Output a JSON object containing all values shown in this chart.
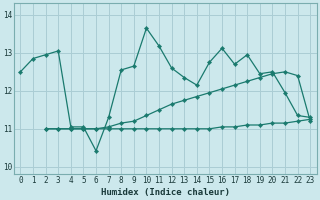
{
  "xlabel": "Humidex (Indice chaleur)",
  "background_color": "#cce8ec",
  "grid_color": "#aacdd4",
  "line_color": "#1a7a6e",
  "xlim": [
    -0.5,
    23.5
  ],
  "ylim": [
    9.8,
    14.3
  ],
  "yticks": [
    10,
    11,
    12,
    13,
    14
  ],
  "xticks": [
    0,
    1,
    2,
    3,
    4,
    5,
    6,
    7,
    8,
    9,
    10,
    11,
    12,
    13,
    14,
    15,
    16,
    17,
    18,
    19,
    20,
    21,
    22,
    23
  ],
  "line1_x": [
    0,
    1,
    2,
    3,
    4,
    5,
    6,
    7,
    8,
    9,
    10,
    11,
    12,
    13,
    14,
    15,
    16,
    17,
    18,
    19,
    20,
    21,
    22,
    23
  ],
  "line1_y": [
    12.5,
    12.85,
    12.95,
    13.05,
    11.05,
    11.05,
    10.42,
    11.3,
    12.55,
    12.65,
    13.65,
    13.18,
    12.6,
    12.35,
    12.15,
    12.75,
    13.12,
    12.7,
    12.95,
    12.45,
    12.5,
    11.95,
    11.35,
    11.3
  ],
  "line2_x": [
    2,
    3,
    4,
    5,
    6,
    7,
    8,
    9,
    10,
    11,
    12,
    13,
    14,
    15,
    16,
    17,
    18,
    19,
    20,
    21,
    22,
    23
  ],
  "line2_y": [
    11.0,
    11.0,
    11.0,
    11.0,
    11.0,
    11.05,
    11.15,
    11.2,
    11.35,
    11.5,
    11.65,
    11.75,
    11.85,
    11.95,
    12.05,
    12.15,
    12.25,
    12.35,
    12.45,
    12.5,
    12.4,
    11.2
  ],
  "line3_x": [
    2,
    3,
    4,
    5,
    6,
    7,
    8,
    9,
    10,
    11,
    12,
    13,
    14,
    15,
    16,
    17,
    18,
    19,
    20,
    21,
    22,
    23
  ],
  "line3_y": [
    11.0,
    11.0,
    11.0,
    11.0,
    11.0,
    11.0,
    11.0,
    11.0,
    11.0,
    11.0,
    11.0,
    11.0,
    11.0,
    11.0,
    11.05,
    11.05,
    11.1,
    11.1,
    11.15,
    11.15,
    11.2,
    11.25
  ],
  "tick_fontsize": 5.5,
  "xlabel_fontsize": 6.5,
  "spine_color": "#7aadaf"
}
